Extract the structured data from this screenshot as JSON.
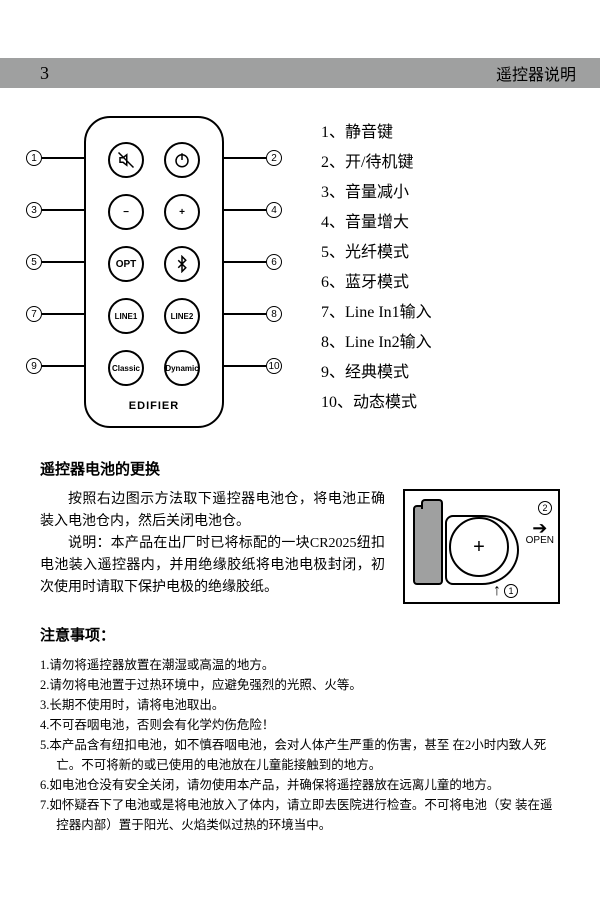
{
  "header": {
    "page_number": "3",
    "title": "遥控器说明"
  },
  "remote": {
    "brand": "EDIFIER",
    "buttons": [
      {
        "id": 1,
        "icon": "mute",
        "label": ""
      },
      {
        "id": 2,
        "icon": "power",
        "label": ""
      },
      {
        "id": 3,
        "icon": "minus",
        "label": "−"
      },
      {
        "id": 4,
        "icon": "plus",
        "label": "+"
      },
      {
        "id": 5,
        "icon": "text",
        "label": "OPT"
      },
      {
        "id": 6,
        "icon": "bluetooth",
        "label": ""
      },
      {
        "id": 7,
        "icon": "text",
        "label": "LINE1"
      },
      {
        "id": 8,
        "icon": "text",
        "label": "LINE2"
      },
      {
        "id": 9,
        "icon": "text",
        "label": "Classic"
      },
      {
        "id": 10,
        "icon": "text",
        "label": "Dynamic"
      }
    ],
    "row_tops": [
      24,
      76,
      128,
      180,
      232
    ]
  },
  "legend": [
    {
      "idx": "1、",
      "text": "静音键"
    },
    {
      "idx": "2、",
      "text": "开/待机键"
    },
    {
      "idx": "3、",
      "text": "音量减小"
    },
    {
      "idx": "4、",
      "text": "音量增大"
    },
    {
      "idx": "5、",
      "text": "光纤模式"
    },
    {
      "idx": "6、",
      "text": "蓝牙模式"
    },
    {
      "idx": "7、",
      "text": "Line In1输入"
    },
    {
      "idx": "8、",
      "text": "Line In2输入"
    },
    {
      "idx": "9、",
      "text": "经典模式"
    },
    {
      "idx": "10、",
      "text": "动态模式"
    }
  ],
  "battery": {
    "title": "遥控器电池的更换",
    "para1": "按照右边图示方法取下遥控器电池仓，将电池正确装入电池仓内，然后关闭电池仓。",
    "para2": "说明：本产品在出厂时已将标配的一块CR2025纽扣电池装入遥控器内，并用绝缘胶纸将电池电极封闭，初次使用时请取下保护电极的绝缘胶纸。",
    "diagram": {
      "coin_label": "+",
      "open_label": "OPEN",
      "num1": "1",
      "num2": "2"
    }
  },
  "notes": {
    "title": "注意事项：",
    "items": [
      "1.请勿将遥控器放置在潮湿或高温的地方。",
      "2.请勿将电池置于过热环境中，应避免强烈的光照、火等。",
      "3.长期不使用时，请将电池取出。",
      "4.不可吞咽电池，否则会有化学灼伤危险！",
      "5.本产品含有纽扣电池，如不慎吞咽电池，会对人体产生严重的伤害，甚至 在2小时内致人死亡。不可将新的或已使用的电池放在儿童能接触到的地方。",
      "6.如电池仓没有安全关闭，请勿使用本产品，并确保将遥控器放在远离儿童的地方。",
      "7.如怀疑吞下了电池或是将电池放入了体内，请立即去医院进行检查。不可将电池（安 装在遥控器内部）置于阳光、火焰类似过热的环境当中。"
    ]
  },
  "colors": {
    "header_bg": "#9fa0a0",
    "text": "#000000",
    "page_bg": "#ffffff"
  }
}
